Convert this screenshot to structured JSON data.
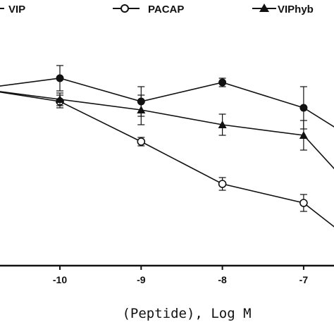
{
  "chart_data": {
    "type": "line",
    "title": "",
    "xlabel": "(Peptide), Log M",
    "ylabel": "",
    "x_ticks": [
      -10,
      -9,
      -8,
      -7
    ],
    "x_tick_labels": [
      "-10",
      "-9",
      "-8",
      "-7"
    ],
    "grid": false,
    "legend_position": "top",
    "series": [
      {
        "name": "VIP",
        "marker": "filled-circle",
        "x": [
          -11,
          -10,
          -9,
          -8,
          -7,
          -6.5
        ],
        "y": [
          88,
          93,
          82,
          91,
          79,
          67
        ],
        "err": [
          0,
          6,
          7,
          2,
          10,
          0
        ]
      },
      {
        "name": "PACAP",
        "marker": "open-circle",
        "x": [
          -11,
          -10,
          -9,
          -8,
          -7,
          -6.5
        ],
        "y": [
          88,
          82,
          63,
          43,
          34,
          19
        ],
        "err": [
          0,
          3,
          2,
          3,
          4,
          0
        ]
      },
      {
        "name": "VIPhyb",
        "marker": "filled-triangle",
        "x": [
          -11,
          -10,
          -9,
          -8,
          -7,
          -6.5
        ],
        "y": [
          88,
          83,
          78,
          71,
          66,
          45
        ],
        "err": [
          0,
          3,
          7,
          5,
          7,
          0
        ]
      }
    ]
  }
}
